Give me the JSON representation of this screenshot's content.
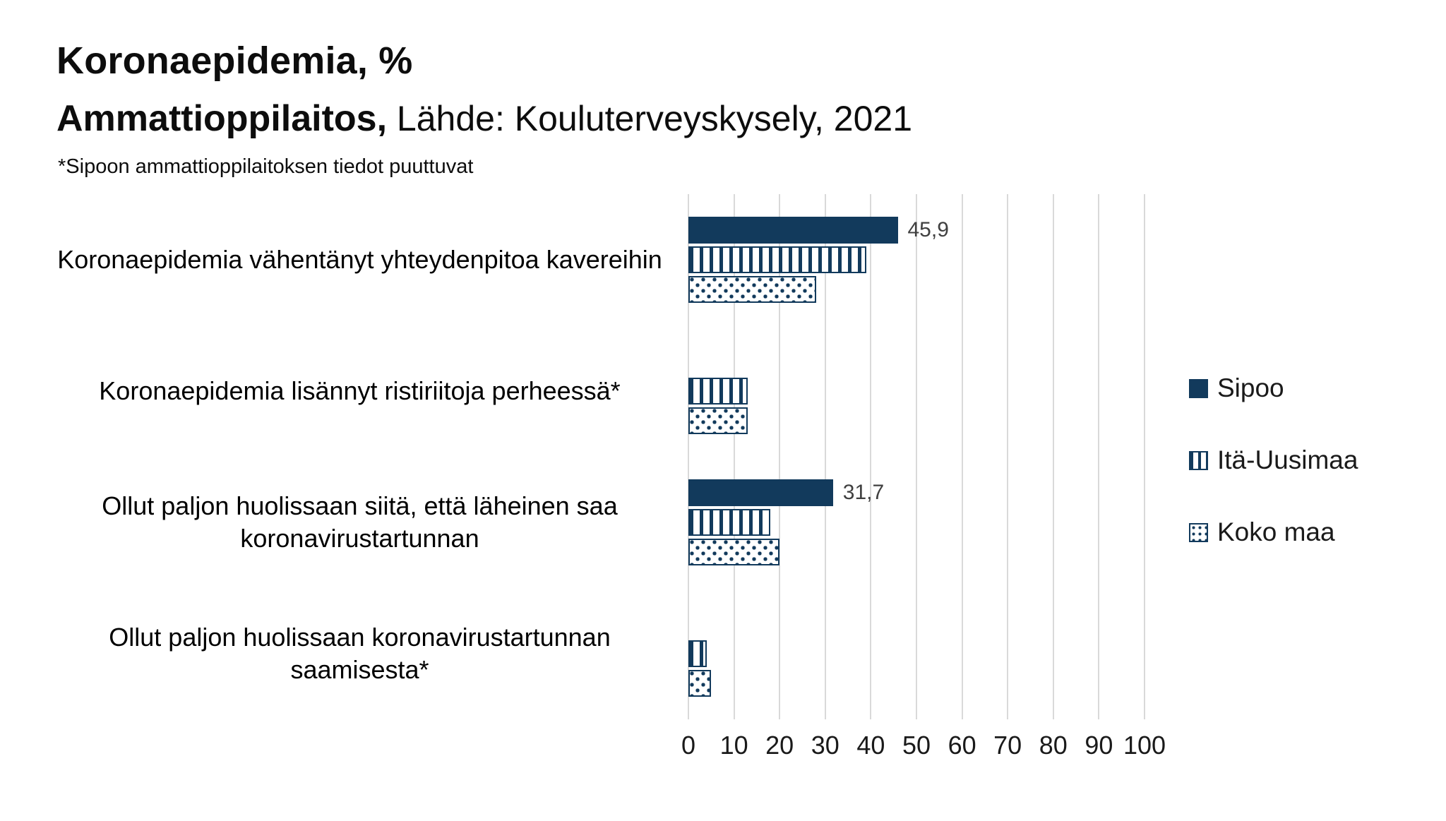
{
  "page": {
    "title": "Koronaepidemia, %",
    "subtitle_bold": "Ammattioppilaitos,",
    "subtitle_rest": " Lähde: Kouluterveyskysely, 2021",
    "footnote": "*Sipoon ammattioppilaitoksen tiedot puuttuvat"
  },
  "chart_data": {
    "type": "bar",
    "orientation": "horizontal",
    "title": "Koronaepidemia, %",
    "subtitle": "Ammattioppilaitos, Lähde: Kouluterveyskysely, 2021",
    "footnote": "*Sipoon ammattioppilaitoksen tiedot puuttuvat",
    "categories": [
      "Koronaepidemia vähentänyt yhteydenpitoa kavereihin",
      "Koronaepidemia lisännyt ristiriitoja perheessä*",
      "Ollut paljon huolissaan siitä, että läheinen saa koronavirustartunnan",
      "Ollut paljon huolissaan koronavirustartunnan saamisesta*"
    ],
    "series": [
      {
        "name": "Sipoo",
        "pattern": "solid",
        "values": [
          45.9,
          null,
          31.7,
          null
        ],
        "data_labels": [
          "45,9",
          "",
          "31,7",
          ""
        ]
      },
      {
        "name": "Itä-Uusimaa",
        "pattern": "vertical-stripes",
        "values": [
          39,
          13,
          18,
          4
        ],
        "data_labels": [
          "",
          "",
          "",
          ""
        ]
      },
      {
        "name": "Koko maa",
        "pattern": "dots",
        "values": [
          28,
          13,
          20,
          5
        ],
        "data_labels": [
          "",
          "",
          "",
          ""
        ]
      }
    ],
    "xlim": [
      0,
      100
    ],
    "xticks": [
      0,
      10,
      20,
      30,
      40,
      50,
      60,
      70,
      80,
      90,
      100
    ],
    "grid": "vertical",
    "legend_position": "right",
    "colors": {
      "navy": "#123a5c",
      "grid": "#d9d9d9",
      "background": "#ffffff",
      "data_label": "#404040"
    }
  }
}
